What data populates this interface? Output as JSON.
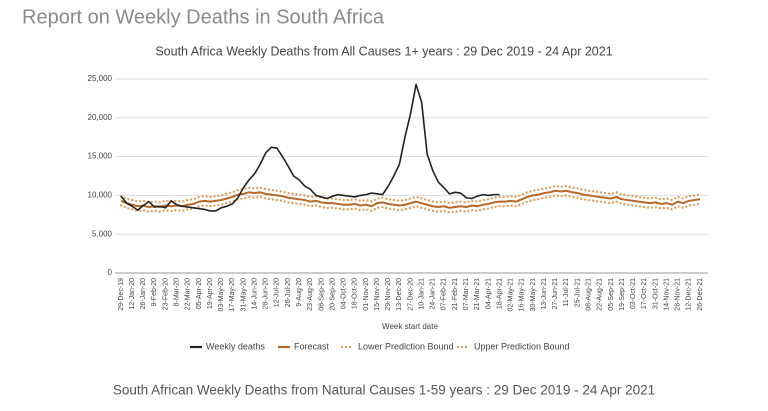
{
  "page_title": "Report on Weekly Deaths in South Africa",
  "next_chart_title": "South African Weekly Deaths from Natural Causes 1-59 years : 29 Dec 2019 - 24 Apr 2021",
  "chart_data": {
    "type": "line",
    "title": "South Africa Weekly Deaths from All Causes 1+ years : 29 Dec 2019 - 24 Apr 2021",
    "x_label": "Week start date",
    "categories": [
      "29-Dec-19",
      null,
      "12-Jan-20",
      null,
      "26-Jan-20",
      null,
      "9-Feb-20",
      null,
      "23-Feb-20",
      null,
      "8-Mar-20",
      null,
      "22-Mar-20",
      null,
      "05-Apr-20",
      null,
      "19-Apr-20",
      null,
      "03-May-20",
      null,
      "17-May-20",
      null,
      "31-May-20",
      null,
      "14-Jun-20",
      null,
      "28-Jun-20",
      null,
      "12-Jul-20",
      null,
      "26-Jul-20",
      null,
      "9-Aug-20",
      null,
      "23-Aug-20",
      null,
      "06-Sep-20",
      null,
      "20-Sep-20",
      null,
      "04-Oct-20",
      null,
      "18-Oct-20",
      null,
      "01-Nov-20",
      null,
      "15-Nov-20",
      null,
      "29-Nov-20",
      null,
      "13-Dec-20",
      null,
      "27-Dec-20",
      null,
      "10-Jan-21",
      null,
      "24-Jan-21",
      null,
      "07-Feb-21",
      null,
      "21-Feb-21",
      null,
      "07-Mar-21",
      null,
      "21-Mar-21",
      null,
      "04-Apr-21",
      null,
      "18-Apr-21",
      null,
      "02-May-21",
      null,
      "16-May-21",
      null,
      "30-May-21",
      null,
      "13-Jun-21",
      null,
      "27-Jun-21",
      null,
      "11-Jul-21",
      null,
      "25-Jul-21",
      null,
      "08-Aug-21",
      null,
      "22-Aug-21",
      null,
      "05-Sep-21",
      null,
      "19-Sep-21",
      null,
      "03-Oct-21",
      null,
      "17-Oct-21",
      null,
      "31-Oct-21",
      null,
      "14-Nov-21",
      null,
      "28-Nov-21",
      null,
      "12-Dec-21",
      null,
      "26-Dec-21"
    ],
    "series": [
      {
        "name": "Weekly deaths",
        "color": "#222222",
        "style": "solid",
        "values": [
          9900,
          9000,
          8600,
          8100,
          8700,
          9200,
          8500,
          8600,
          8400,
          9300,
          8800,
          8600,
          8500,
          8400,
          8300,
          8200,
          8000,
          8000,
          8400,
          8600,
          8900,
          9700,
          11000,
          12000,
          12800,
          14000,
          15500,
          16200,
          16100,
          15000,
          13800,
          12500,
          12000,
          11200,
          10800,
          10000,
          9800,
          9600,
          9900,
          10100,
          10000,
          9900,
          9800,
          10000,
          10100,
          10300,
          10200,
          10100,
          11200,
          12500,
          14000,
          17500,
          20500,
          24300,
          22000,
          15300,
          13200,
          11700,
          11000,
          10200,
          10400,
          10300,
          9700,
          9600,
          9900,
          10100,
          10000,
          10100,
          10100,
          null,
          null,
          null,
          null,
          null,
          null,
          null,
          null,
          null,
          null,
          null,
          null,
          null,
          null,
          null,
          null,
          null,
          null,
          null,
          null,
          null,
          null,
          null,
          null,
          null,
          null,
          null,
          null,
          null,
          null,
          null,
          null,
          null,
          null,
          null,
          null
        ]
      },
      {
        "name": "Forecast",
        "color": "#b8682a",
        "style": "solid",
        "values": [
          9300,
          9000,
          8800,
          8600,
          8700,
          8500,
          8600,
          8500,
          8700,
          8600,
          8700,
          8600,
          8800,
          8900,
          9200,
          9300,
          9200,
          9300,
          9400,
          9600,
          9800,
          10100,
          10200,
          10400,
          10300,
          10400,
          10200,
          10100,
          10000,
          9900,
          9700,
          9600,
          9500,
          9400,
          9200,
          9300,
          9100,
          9000,
          9000,
          8900,
          8800,
          8800,
          8900,
          8700,
          8800,
          8600,
          9000,
          9100,
          8900,
          8800,
          8700,
          8800,
          9000,
          9200,
          9000,
          8800,
          8600,
          8500,
          8600,
          8400,
          8500,
          8600,
          8500,
          8700,
          8600,
          8800,
          8900,
          9100,
          9200,
          9200,
          9300,
          9200,
          9500,
          9800,
          10000,
          10100,
          10300,
          10400,
          10600,
          10500,
          10600,
          10400,
          10300,
          10100,
          10000,
          9900,
          9800,
          9700,
          9600,
          9800,
          9500,
          9400,
          9300,
          9200,
          9100,
          9000,
          9100,
          8900,
          9000,
          8800,
          9200,
          9000,
          9300,
          9400,
          9500
        ]
      },
      {
        "name": "Lower Prediction Bound",
        "color": "#e0a060",
        "style": "dotted",
        "values": [
          8700,
          8400,
          8200,
          8000,
          8100,
          7900,
          8000,
          7900,
          8100,
          8000,
          8100,
          8000,
          8200,
          8300,
          8600,
          8700,
          8600,
          8700,
          8800,
          9000,
          9200,
          9500,
          9600,
          9800,
          9700,
          9800,
          9600,
          9500,
          9400,
          9300,
          9100,
          9000,
          8900,
          8800,
          8600,
          8700,
          8500,
          8400,
          8400,
          8300,
          8200,
          8200,
          8300,
          8100,
          8200,
          8000,
          8400,
          8500,
          8300,
          8200,
          8100,
          8200,
          8400,
          8600,
          8400,
          8200,
          8000,
          7900,
          8000,
          7800,
          7900,
          8000,
          7900,
          8100,
          8000,
          8200,
          8300,
          8500,
          8600,
          8600,
          8700,
          8600,
          8900,
          9200,
          9400,
          9500,
          9700,
          9800,
          10000,
          9900,
          10000,
          9800,
          9700,
          9500,
          9400,
          9300,
          9200,
          9100,
          9000,
          9200,
          8900,
          8800,
          8700,
          8600,
          8500,
          8400,
          8500,
          8300,
          8400,
          8200,
          8600,
          8400,
          8700,
          8800,
          8900
        ]
      },
      {
        "name": "Upper Prediction Bound",
        "color": "#e0a060",
        "style": "dotted",
        "values": [
          9900,
          9600,
          9400,
          9200,
          9300,
          9100,
          9200,
          9100,
          9300,
          9200,
          9300,
          9200,
          9400,
          9500,
          9800,
          9900,
          9800,
          9900,
          10000,
          10200,
          10400,
          10700,
          10800,
          11000,
          10900,
          11000,
          10800,
          10700,
          10600,
          10500,
          10300,
          10200,
          10100,
          10000,
          9800,
          9900,
          9700,
          9600,
          9600,
          9500,
          9400,
          9400,
          9500,
          9300,
          9400,
          9200,
          9600,
          9700,
          9500,
          9400,
          9300,
          9400,
          9600,
          9800,
          9600,
          9400,
          9200,
          9100,
          9200,
          9000,
          9100,
          9200,
          9100,
          9300,
          9200,
          9400,
          9500,
          9700,
          9800,
          9800,
          9900,
          9800,
          10100,
          10400,
          10600,
          10700,
          10900,
          11000,
          11200,
          11100,
          11200,
          11000,
          10900,
          10700,
          10600,
          10500,
          10400,
          10300,
          10200,
          10400,
          10100,
          10000,
          9900,
          9800,
          9700,
          9600,
          9700,
          9500,
          9600,
          9400,
          9800,
          9600,
          9900,
          10000,
          10100
        ]
      }
    ],
    "ylim": [
      0,
      25000
    ],
    "yticks": [
      0,
      {
        "value": 5000,
        "label": "5,000"
      },
      {
        "value": 10000,
        "label": "10,000"
      },
      {
        "value": 15000,
        "label": "15,000"
      },
      {
        "value": 20000,
        "label": "20,000"
      },
      {
        "value": 25000,
        "label": "25,000"
      }
    ],
    "grid": true,
    "legend": "bottom"
  }
}
